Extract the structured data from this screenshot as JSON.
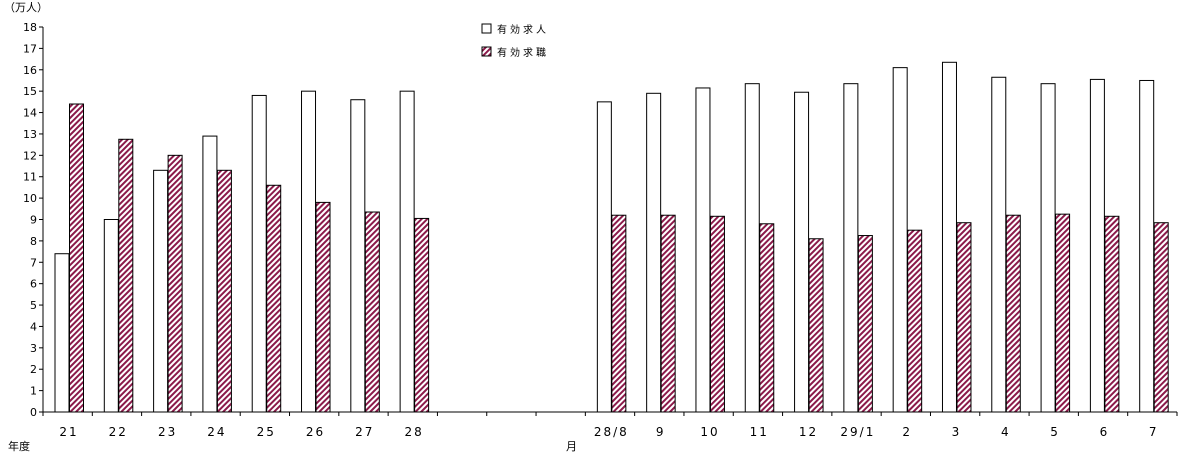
{
  "chart_data": {
    "type": "bar",
    "unit_label": "（万人）",
    "xlabel_left": "年度",
    "xlabel_right": "月",
    "ylim": [
      0,
      18
    ],
    "yticks": [
      "0",
      "1",
      "2",
      "3",
      "4",
      "5",
      "6",
      "7",
      "8",
      "9",
      "10",
      "11",
      "12",
      "13",
      "14",
      "15",
      "16",
      "17",
      "18"
    ],
    "categories": [
      "21",
      "22",
      "23",
      "24",
      "25",
      "26",
      "27",
      "28",
      "",
      "",
      "",
      "28/8",
      "9",
      "10",
      "11",
      "12",
      "29/1",
      "2",
      "3",
      "4",
      "5",
      "6",
      "7"
    ],
    "series": [
      {
        "name": "有効求人",
        "color": "#ffffff",
        "values": [
          7.4,
          9.0,
          11.3,
          12.9,
          14.8,
          15.0,
          14.6,
          15.0,
          null,
          null,
          null,
          14.5,
          14.9,
          15.15,
          15.35,
          14.95,
          15.35,
          16.1,
          16.35,
          15.65,
          15.35,
          15.55,
          15.5
        ]
      },
      {
        "name": "有効求職",
        "color": "#8b1a4a",
        "values": [
          14.4,
          12.75,
          12.0,
          11.3,
          10.6,
          9.8,
          9.35,
          9.05,
          null,
          null,
          null,
          9.2,
          9.2,
          9.15,
          8.8,
          8.1,
          8.25,
          8.5,
          8.85,
          9.2,
          9.25,
          9.15,
          8.85
        ]
      }
    ]
  }
}
